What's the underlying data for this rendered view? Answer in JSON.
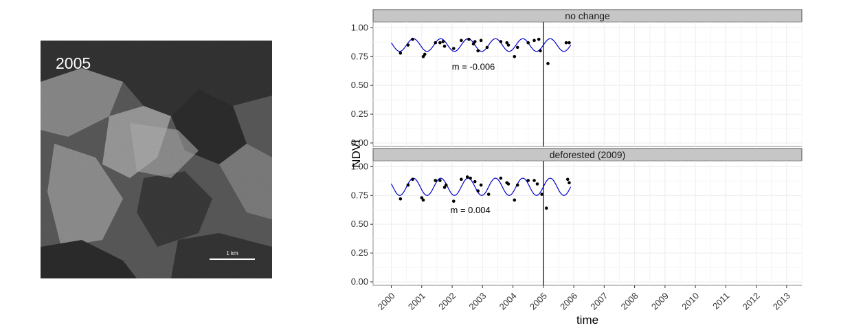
{
  "satellite": {
    "year_label": "2005",
    "scale_label": "1 km"
  },
  "chart_data": {
    "type": "scatter",
    "xlabel": "time",
    "ylabel": "NDVI",
    "xlim": [
      1999.4,
      2013.5
    ],
    "ylim": [
      -0.03,
      1.05
    ],
    "x_ticks": [
      2000,
      2001,
      2002,
      2003,
      2004,
      2005,
      2006,
      2007,
      2008,
      2009,
      2010,
      2011,
      2012,
      2013
    ],
    "x_tick_labels": [
      "2000",
      "2001",
      "2002",
      "2003",
      "2004",
      "2005",
      "2006",
      "2007",
      "2008",
      "2009",
      "2010",
      "2011",
      "2012",
      "2013"
    ],
    "y_ticks": [
      0,
      0.25,
      0.5,
      0.75,
      1.0
    ],
    "y_tick_labels": [
      "0.00",
      "0.25",
      "0.50",
      "0.75",
      "1.00"
    ],
    "grid": true,
    "vline_x": 2005,
    "colors": {
      "points": "#000000",
      "fit": "#0000cc",
      "strip": "#c6c6c6",
      "grid": "#ececec",
      "vline": "#000000"
    },
    "panels": [
      {
        "strip": "no change",
        "annotation": "m = -0.006",
        "annotation_pos": {
          "x": 2002.7,
          "y": 0.66
        },
        "fit": {
          "x_start": 2000.0,
          "x_end": 2005.9,
          "mean": 0.85,
          "amplitude": 0.055,
          "period": 0.9,
          "phase": 2000.5
        },
        "points": [
          {
            "x": 2000.3,
            "y": 0.78
          },
          {
            "x": 2000.55,
            "y": 0.85
          },
          {
            "x": 2000.7,
            "y": 0.9
          },
          {
            "x": 2001.05,
            "y": 0.75
          },
          {
            "x": 2001.1,
            "y": 0.77
          },
          {
            "x": 2001.45,
            "y": 0.87
          },
          {
            "x": 2001.6,
            "y": 0.87
          },
          {
            "x": 2001.7,
            "y": 0.88
          },
          {
            "x": 2001.75,
            "y": 0.84
          },
          {
            "x": 2002.05,
            "y": 0.82
          },
          {
            "x": 2002.3,
            "y": 0.89
          },
          {
            "x": 2002.55,
            "y": 0.9
          },
          {
            "x": 2002.7,
            "y": 0.86
          },
          {
            "x": 2002.75,
            "y": 0.88
          },
          {
            "x": 2002.85,
            "y": 0.8
          },
          {
            "x": 2002.95,
            "y": 0.89
          },
          {
            "x": 2003.15,
            "y": 0.83
          },
          {
            "x": 2003.6,
            "y": 0.88
          },
          {
            "x": 2003.8,
            "y": 0.87
          },
          {
            "x": 2003.85,
            "y": 0.85
          },
          {
            "x": 2004.05,
            "y": 0.75
          },
          {
            "x": 2004.15,
            "y": 0.83
          },
          {
            "x": 2004.5,
            "y": 0.87
          },
          {
            "x": 2004.7,
            "y": 0.89
          },
          {
            "x": 2004.85,
            "y": 0.9
          },
          {
            "x": 2004.9,
            "y": 0.8
          },
          {
            "x": 2005.15,
            "y": 0.69
          },
          {
            "x": 2005.75,
            "y": 0.87
          },
          {
            "x": 2005.85,
            "y": 0.87
          }
        ]
      },
      {
        "strip": "deforested (2009)",
        "annotation": "m = 0.004",
        "annotation_pos": {
          "x": 2002.6,
          "y": 0.62
        },
        "fit": {
          "x_start": 2000.0,
          "x_end": 2005.9,
          "mean": 0.825,
          "amplitude": 0.075,
          "period": 0.9,
          "phase": 2000.5
        },
        "points": [
          {
            "x": 2000.3,
            "y": 0.72
          },
          {
            "x": 2000.55,
            "y": 0.84
          },
          {
            "x": 2000.7,
            "y": 0.89
          },
          {
            "x": 2001.0,
            "y": 0.73
          },
          {
            "x": 2001.05,
            "y": 0.71
          },
          {
            "x": 2001.45,
            "y": 0.88
          },
          {
            "x": 2001.6,
            "y": 0.88
          },
          {
            "x": 2001.75,
            "y": 0.82
          },
          {
            "x": 2001.8,
            "y": 0.84
          },
          {
            "x": 2002.05,
            "y": 0.7
          },
          {
            "x": 2002.3,
            "y": 0.89
          },
          {
            "x": 2002.5,
            "y": 0.91
          },
          {
            "x": 2002.6,
            "y": 0.9
          },
          {
            "x": 2002.75,
            "y": 0.87
          },
          {
            "x": 2002.85,
            "y": 0.79
          },
          {
            "x": 2002.95,
            "y": 0.84
          },
          {
            "x": 2003.2,
            "y": 0.76
          },
          {
            "x": 2003.6,
            "y": 0.9
          },
          {
            "x": 2003.8,
            "y": 0.86
          },
          {
            "x": 2003.85,
            "y": 0.85
          },
          {
            "x": 2004.05,
            "y": 0.71
          },
          {
            "x": 2004.15,
            "y": 0.84
          },
          {
            "x": 2004.5,
            "y": 0.88
          },
          {
            "x": 2004.7,
            "y": 0.88
          },
          {
            "x": 2004.8,
            "y": 0.85
          },
          {
            "x": 2004.95,
            "y": 0.76
          },
          {
            "x": 2005.1,
            "y": 0.64
          },
          {
            "x": 2005.8,
            "y": 0.89
          },
          {
            "x": 2005.85,
            "y": 0.86
          }
        ]
      }
    ]
  }
}
